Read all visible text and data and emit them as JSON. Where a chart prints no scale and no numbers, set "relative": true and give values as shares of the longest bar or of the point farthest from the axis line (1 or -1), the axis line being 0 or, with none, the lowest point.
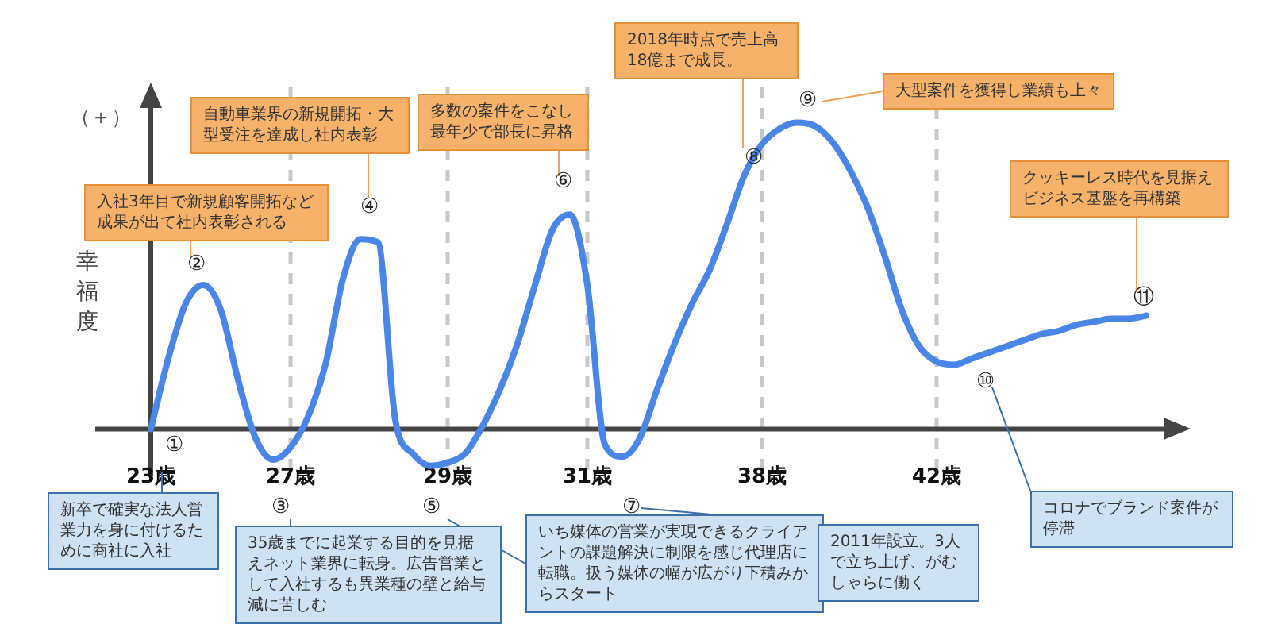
{
  "chart_data": {
    "type": "line",
    "ylabel": "幸福度",
    "relative": true,
    "grid": "x",
    "legend": false,
    "marker": "none",
    "line_style": "solid",
    "categories": [
      "23歳",
      null,
      null,
      null,
      null,
      null,
      null,
      null,
      "27歳",
      null,
      null,
      null,
      null,
      null,
      null,
      null,
      null,
      "29歳",
      null,
      null,
      null,
      null,
      null,
      null,
      null,
      "31歳",
      null,
      null,
      null,
      null,
      null,
      null,
      null,
      null,
      null,
      "38歳",
      null,
      null,
      null,
      null,
      null,
      null,
      null,
      null,
      null,
      "42歳",
      null,
      null,
      null,
      null,
      null,
      null,
      null,
      null,
      null,
      null,
      null,
      null
    ],
    "series": [
      {
        "color": "#4a86e8",
        "values": [
          0,
          0.23,
          0.41,
          0.47,
          0.39,
          0.16,
          -0.03,
          -0.1,
          -0.06,
          0.04,
          0.21,
          0.49,
          0.62,
          0.61,
          0.03,
          -0.08,
          -0.12,
          -0.11,
          -0.08,
          0.01,
          0.13,
          0.28,
          0.47,
          0.65,
          0.7,
          0.47,
          -0.05,
          -0.09,
          -0.03,
          0.13,
          0.28,
          0.41,
          0.52,
          0.67,
          0.83,
          0.93,
          0.98,
          1,
          0.99,
          0.94,
          0.85,
          0.73,
          0.57,
          0.39,
          0.27,
          0.22,
          0.21,
          0.23,
          0.25,
          0.27,
          0.29,
          0.31,
          0.32,
          0.34,
          0.35,
          0.36,
          0.36,
          0.37
        ]
      }
    ],
    "annotations": [
      "（＋）",
      "①",
      "②",
      "③",
      "④",
      "⑤",
      "⑥",
      "⑦",
      "⑧",
      "⑨",
      "⑩",
      "⑪",
      "入社3年目で新規顧客開拓など成果が出て社内表彰される",
      "自動車業界の新規開拓・大型受注を達成し社内表彰",
      "多数の案件をこなし最年少で部長に昇格",
      "2018年時点で売上高18億まで成長。",
      "大型案件を獲得し業績も上々",
      "クッキーレス時代を見据えビジネス基盤を再構築",
      "新卒で確実な法人営業力を身に付けるために商社に入社",
      "35歳までに起業する目的を見据えネット業界に転身。広告営業として入社するも異業種の壁と給与減に苦しむ",
      "いち媒体の営業が実現できるクライアントの課題解決に制限を感じ代理店に転職。扱う媒体の幅が広がり下積みからスタート",
      "2011年設立。3人で立ち上げ、がむしゃらに働く",
      "コロナでブランド案件が停滞"
    ]
  }
}
